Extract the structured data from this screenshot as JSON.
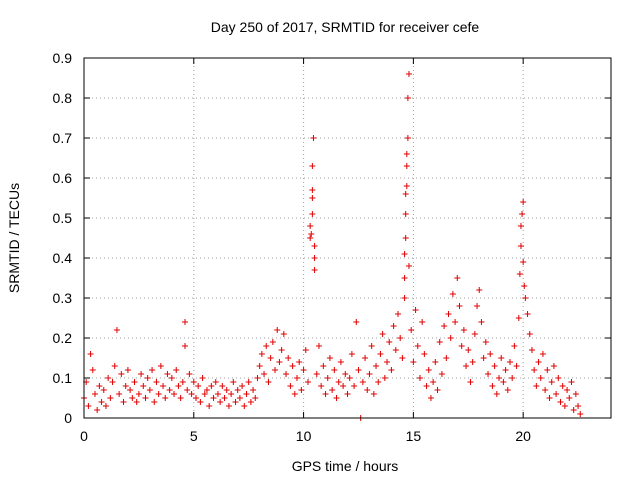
{
  "chart_data": {
    "type": "scatter",
    "title": "Day 250 of 2017, SRMTID for receiver cefe",
    "xlabel": "GPS time / hours",
    "ylabel": "SRMTID / TECUs",
    "xlim": [
      0,
      24
    ],
    "ylim": [
      0,
      0.9
    ],
    "x_ticks": [
      0,
      5,
      10,
      15,
      20
    ],
    "y_ticks": [
      0,
      0.1,
      0.2,
      0.3,
      0.4,
      0.5,
      0.6,
      0.7,
      0.8,
      0.9
    ],
    "x_tick_labels": [
      "0",
      "5",
      "10",
      "15",
      "20"
    ],
    "y_tick_labels": [
      "0",
      "0.1",
      "0.2",
      "0.3",
      "0.4",
      "0.5",
      "0.6",
      "0.7",
      "0.8",
      "0.9"
    ],
    "grid": true,
    "marker": "+",
    "series": [
      {
        "name": "SRMTID",
        "color": "#e00000",
        "points": [
          [
            0.0,
            0.05
          ],
          [
            0.1,
            0.09
          ],
          [
            0.2,
            0.03
          ],
          [
            0.3,
            0.16
          ],
          [
            0.4,
            0.12
          ],
          [
            0.5,
            0.06
          ],
          [
            0.6,
            0.02
          ],
          [
            0.7,
            0.08
          ],
          [
            0.8,
            0.04
          ],
          [
            0.9,
            0.07
          ],
          [
            1.0,
            0.03
          ],
          [
            1.1,
            0.1
          ],
          [
            1.2,
            0.05
          ],
          [
            1.3,
            0.09
          ],
          [
            1.4,
            0.13
          ],
          [
            1.5,
            0.22
          ],
          [
            1.6,
            0.06
          ],
          [
            1.7,
            0.11
          ],
          [
            1.8,
            0.04
          ],
          [
            1.9,
            0.08
          ],
          [
            2.0,
            0.12
          ],
          [
            2.1,
            0.07
          ],
          [
            2.2,
            0.05
          ],
          [
            2.3,
            0.09
          ],
          [
            2.4,
            0.04
          ],
          [
            2.5,
            0.06
          ],
          [
            2.6,
            0.11
          ],
          [
            2.7,
            0.08
          ],
          [
            2.8,
            0.05
          ],
          [
            2.9,
            0.1
          ],
          [
            3.0,
            0.07
          ],
          [
            3.1,
            0.12
          ],
          [
            3.2,
            0.04
          ],
          [
            3.3,
            0.09
          ],
          [
            3.4,
            0.06
          ],
          [
            3.5,
            0.13
          ],
          [
            3.6,
            0.08
          ],
          [
            3.7,
            0.05
          ],
          [
            3.8,
            0.11
          ],
          [
            3.9,
            0.07
          ],
          [
            4.0,
            0.1
          ],
          [
            4.1,
            0.06
          ],
          [
            4.2,
            0.12
          ],
          [
            4.3,
            0.08
          ],
          [
            4.4,
            0.05
          ],
          [
            4.5,
            0.09
          ],
          [
            4.6,
            0.24
          ],
          [
            4.6,
            0.18
          ],
          [
            4.7,
            0.07
          ],
          [
            4.8,
            0.11
          ],
          [
            4.9,
            0.06
          ],
          [
            5.0,
            0.09
          ],
          [
            5.1,
            0.05
          ],
          [
            5.2,
            0.08
          ],
          [
            5.3,
            0.04
          ],
          [
            5.4,
            0.1
          ],
          [
            5.5,
            0.06
          ],
          [
            5.6,
            0.07
          ],
          [
            5.7,
            0.03
          ],
          [
            5.8,
            0.08
          ],
          [
            5.9,
            0.05
          ],
          [
            6.0,
            0.09
          ],
          [
            6.1,
            0.06
          ],
          [
            6.2,
            0.04
          ],
          [
            6.3,
            0.08
          ],
          [
            6.4,
            0.05
          ],
          [
            6.5,
            0.07
          ],
          [
            6.6,
            0.03
          ],
          [
            6.7,
            0.06
          ],
          [
            6.8,
            0.09
          ],
          [
            6.9,
            0.04
          ],
          [
            7.0,
            0.07
          ],
          [
            7.1,
            0.05
          ],
          [
            7.2,
            0.08
          ],
          [
            7.3,
            0.03
          ],
          [
            7.4,
            0.06
          ],
          [
            7.5,
            0.09
          ],
          [
            7.6,
            0.04
          ],
          [
            7.7,
            0.07
          ],
          [
            7.8,
            0.05
          ],
          [
            7.9,
            0.1
          ],
          [
            8.0,
            0.13
          ],
          [
            8.1,
            0.16
          ],
          [
            8.2,
            0.11
          ],
          [
            8.3,
            0.18
          ],
          [
            8.4,
            0.09
          ],
          [
            8.5,
            0.15
          ],
          [
            8.6,
            0.19
          ],
          [
            8.7,
            0.12
          ],
          [
            8.8,
            0.22
          ],
          [
            8.9,
            0.14
          ],
          [
            9.0,
            0.17
          ],
          [
            9.1,
            0.21
          ],
          [
            9.2,
            0.11
          ],
          [
            9.3,
            0.15
          ],
          [
            9.4,
            0.08
          ],
          [
            9.5,
            0.13
          ],
          [
            9.6,
            0.06
          ],
          [
            9.7,
            0.1
          ],
          [
            9.8,
            0.14
          ],
          [
            9.9,
            0.07
          ],
          [
            10.0,
            0.12
          ],
          [
            10.1,
            0.17
          ],
          [
            10.2,
            0.09
          ],
          [
            10.3,
            0.45
          ],
          [
            10.3,
            0.48
          ],
          [
            10.4,
            0.57
          ],
          [
            10.4,
            0.51
          ],
          [
            10.4,
            0.55
          ],
          [
            10.4,
            0.63
          ],
          [
            10.45,
            0.7
          ],
          [
            10.5,
            0.4
          ],
          [
            10.5,
            0.43
          ],
          [
            10.5,
            0.37
          ],
          [
            10.35,
            0.46
          ],
          [
            10.6,
            0.11
          ],
          [
            10.7,
            0.18
          ],
          [
            10.8,
            0.08
          ],
          [
            10.9,
            0.13
          ],
          [
            11.0,
            0.06
          ],
          [
            11.1,
            0.1
          ],
          [
            11.2,
            0.15
          ],
          [
            11.3,
            0.07
          ],
          [
            11.4,
            0.12
          ],
          [
            11.5,
            0.05
          ],
          [
            11.6,
            0.09
          ],
          [
            11.7,
            0.14
          ],
          [
            11.8,
            0.08
          ],
          [
            11.9,
            0.11
          ],
          [
            12.0,
            0.06
          ],
          [
            12.1,
            0.1
          ],
          [
            12.2,
            0.16
          ],
          [
            12.3,
            0.08
          ],
          [
            12.4,
            0.24
          ],
          [
            12.5,
            0.12
          ],
          [
            12.6,
            0.0
          ],
          [
            12.7,
            0.09
          ],
          [
            12.8,
            0.15
          ],
          [
            12.9,
            0.07
          ],
          [
            13.0,
            0.11
          ],
          [
            13.1,
            0.18
          ],
          [
            13.2,
            0.06
          ],
          [
            13.3,
            0.13
          ],
          [
            13.4,
            0.09
          ],
          [
            13.5,
            0.16
          ],
          [
            13.6,
            0.21
          ],
          [
            13.7,
            0.1
          ],
          [
            13.8,
            0.14
          ],
          [
            13.9,
            0.19
          ],
          [
            14.0,
            0.12
          ],
          [
            14.1,
            0.23
          ],
          [
            14.2,
            0.17
          ],
          [
            14.3,
            0.26
          ],
          [
            14.4,
            0.2
          ],
          [
            14.5,
            0.15
          ],
          [
            14.6,
            0.3
          ],
          [
            14.6,
            0.35
          ],
          [
            14.6,
            0.41
          ],
          [
            14.65,
            0.45
          ],
          [
            14.65,
            0.51
          ],
          [
            14.65,
            0.56
          ],
          [
            14.7,
            0.58
          ],
          [
            14.7,
            0.63
          ],
          [
            14.7,
            0.66
          ],
          [
            14.75,
            0.7
          ],
          [
            14.75,
            0.8
          ],
          [
            14.8,
            0.86
          ],
          [
            14.8,
            0.38
          ],
          [
            14.9,
            0.22
          ],
          [
            15.0,
            0.14
          ],
          [
            15.1,
            0.27
          ],
          [
            15.2,
            0.18
          ],
          [
            15.3,
            0.1
          ],
          [
            15.4,
            0.24
          ],
          [
            15.5,
            0.16
          ],
          [
            15.6,
            0.08
          ],
          [
            15.7,
            0.12
          ],
          [
            15.8,
            0.05
          ],
          [
            15.9,
            0.09
          ],
          [
            16.0,
            0.14
          ],
          [
            16.1,
            0.07
          ],
          [
            16.2,
            0.19
          ],
          [
            16.3,
            0.11
          ],
          [
            16.4,
            0.23
          ],
          [
            16.5,
            0.15
          ],
          [
            16.6,
            0.26
          ],
          [
            16.7,
            0.2
          ],
          [
            16.8,
            0.31
          ],
          [
            16.9,
            0.24
          ],
          [
            17.0,
            0.35
          ],
          [
            17.1,
            0.28
          ],
          [
            17.2,
            0.18
          ],
          [
            17.3,
            0.22
          ],
          [
            17.4,
            0.13
          ],
          [
            17.5,
            0.17
          ],
          [
            17.6,
            0.09
          ],
          [
            17.7,
            0.14
          ],
          [
            17.8,
            0.21
          ],
          [
            17.9,
            0.28
          ],
          [
            18.0,
            0.32
          ],
          [
            18.1,
            0.24
          ],
          [
            18.2,
            0.15
          ],
          [
            18.3,
            0.19
          ],
          [
            18.4,
            0.11
          ],
          [
            18.5,
            0.16
          ],
          [
            18.6,
            0.08
          ],
          [
            18.7,
            0.13
          ],
          [
            18.8,
            0.06
          ],
          [
            18.9,
            0.1
          ],
          [
            19.0,
            0.15
          ],
          [
            19.1,
            0.09
          ],
          [
            19.2,
            0.12
          ],
          [
            19.3,
            0.07
          ],
          [
            19.4,
            0.14
          ],
          [
            19.5,
            0.1
          ],
          [
            19.6,
            0.18
          ],
          [
            19.7,
            0.13
          ],
          [
            19.8,
            0.25
          ],
          [
            19.85,
            0.36
          ],
          [
            19.9,
            0.43
          ],
          [
            19.9,
            0.48
          ],
          [
            19.95,
            0.51
          ],
          [
            20.0,
            0.54
          ],
          [
            20.0,
            0.39
          ],
          [
            20.05,
            0.33
          ],
          [
            20.1,
            0.3
          ],
          [
            20.2,
            0.26
          ],
          [
            20.3,
            0.21
          ],
          [
            20.4,
            0.17
          ],
          [
            20.5,
            0.12
          ],
          [
            20.6,
            0.08
          ],
          [
            20.7,
            0.14
          ],
          [
            20.8,
            0.1
          ],
          [
            20.9,
            0.16
          ],
          [
            21.0,
            0.07
          ],
          [
            21.1,
            0.12
          ],
          [
            21.2,
            0.05
          ],
          [
            21.3,
            0.09
          ],
          [
            21.4,
            0.13
          ],
          [
            21.5,
            0.06
          ],
          [
            21.6,
            0.1
          ],
          [
            21.7,
            0.04
          ],
          [
            21.8,
            0.08
          ],
          [
            21.9,
            0.03
          ],
          [
            22.0,
            0.07
          ],
          [
            22.1,
            0.05
          ],
          [
            22.2,
            0.09
          ],
          [
            22.3,
            0.02
          ],
          [
            22.4,
            0.06
          ],
          [
            22.5,
            0.03
          ],
          [
            22.6,
            0.01
          ]
        ]
      }
    ]
  }
}
